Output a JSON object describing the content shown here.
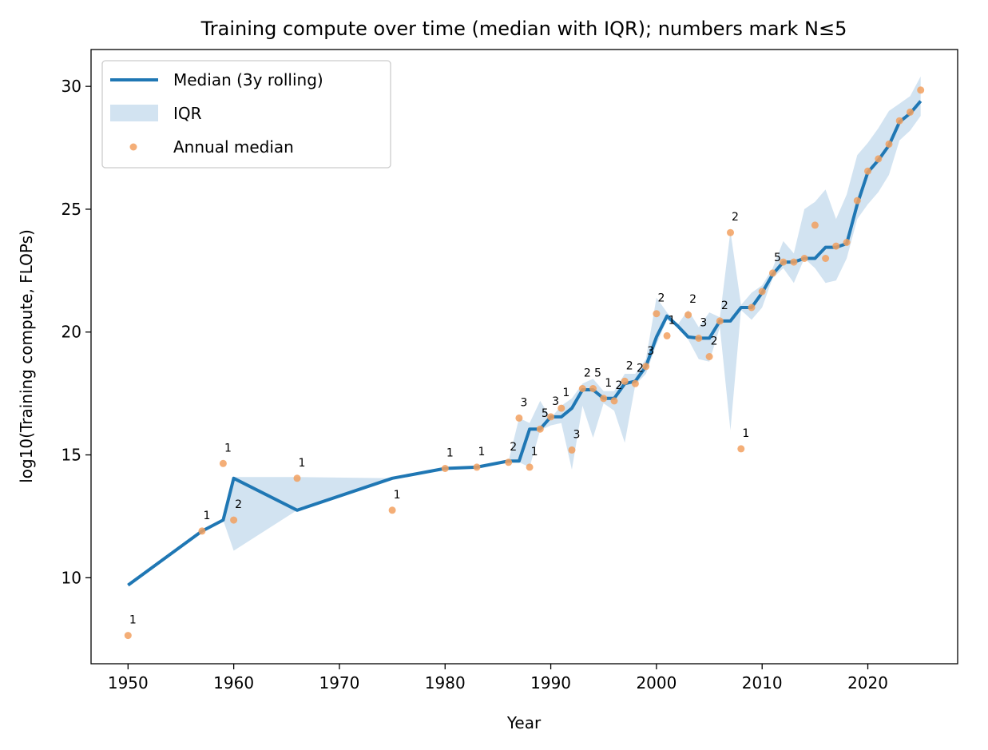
{
  "chart_data": {
    "type": "line",
    "title": "Training compute over time (median with IQR); numbers mark N≤5",
    "xlabel": "Year",
    "ylabel": "log10(Training compute, FLOPs)",
    "xlim": [
      1946.5,
      2028.5
    ],
    "ylim": [
      6.5,
      31.5
    ],
    "xticks": [
      1950,
      1960,
      1970,
      1980,
      1990,
      2000,
      2010,
      2020
    ],
    "yticks": [
      10,
      15,
      20,
      25,
      30
    ],
    "grid": false,
    "legend": {
      "position": "top-left",
      "entries": [
        "Median (3y rolling)",
        "IQR",
        "Annual median"
      ]
    },
    "colors": {
      "median_line": "#1f77b4",
      "iqr_fill": "#a6c8e3",
      "annual_points": "#f2a05f"
    },
    "series": [
      {
        "name": "Median (3y rolling)",
        "type": "line",
        "x": [
          1950,
          1957,
          1959,
          1960,
          1966,
          1975,
          1980,
          1983,
          1986,
          1987,
          1988,
          1989,
          1990,
          1991,
          1992,
          1993,
          1994,
          1995,
          1996,
          1997,
          1998,
          1999,
          2000,
          2001,
          2002,
          2003,
          2004,
          2005,
          2006,
          2007,
          2008,
          2009,
          2010,
          2011,
          2012,
          2013,
          2014,
          2015,
          2016,
          2017,
          2018,
          2019,
          2020,
          2021,
          2022,
          2023,
          2024,
          2025
        ],
        "y": [
          9.7,
          11.9,
          12.35,
          14.05,
          12.75,
          14.05,
          14.45,
          14.5,
          14.75,
          14.75,
          16.05,
          16.05,
          16.55,
          16.55,
          16.9,
          17.65,
          17.65,
          17.3,
          17.3,
          17.9,
          18.0,
          18.6,
          19.8,
          20.65,
          20.25,
          19.8,
          19.75,
          19.75,
          20.45,
          20.45,
          21.0,
          21.0,
          21.6,
          22.35,
          22.85,
          22.85,
          23.0,
          23.0,
          23.45,
          23.45,
          23.6,
          25.2,
          26.5,
          27.0,
          27.6,
          28.55,
          28.9,
          29.4
        ]
      },
      {
        "name": "IQR",
        "type": "band",
        "x": [
          1950,
          1957,
          1959,
          1960,
          1966,
          1975,
          1980,
          1983,
          1986,
          1987,
          1988,
          1989,
          1990,
          1991,
          1992,
          1993,
          1994,
          1995,
          1996,
          1997,
          1998,
          1999,
          2000,
          2001,
          2002,
          2003,
          2004,
          2005,
          2006,
          2007,
          2008,
          2009,
          2010,
          2011,
          2012,
          2013,
          2014,
          2015,
          2016,
          2017,
          2018,
          2019,
          2020,
          2021,
          2022,
          2023,
          2024,
          2025
        ],
        "lower": [
          9.7,
          11.9,
          12.35,
          11.1,
          12.75,
          14.05,
          14.45,
          14.5,
          14.75,
          14.7,
          14.5,
          16.0,
          16.2,
          16.3,
          14.4,
          17.0,
          15.7,
          17.1,
          16.8,
          15.5,
          17.85,
          18.3,
          19.5,
          20.5,
          20.2,
          19.7,
          18.9,
          18.8,
          20.2,
          16.0,
          20.9,
          20.5,
          21.0,
          22.2,
          22.6,
          22.0,
          23.0,
          22.6,
          22.0,
          22.1,
          23.0,
          24.6,
          25.2,
          25.7,
          26.4,
          27.8,
          28.2,
          28.8
        ],
        "upper": [
          9.7,
          11.9,
          12.35,
          14.1,
          14.1,
          14.05,
          14.45,
          14.5,
          14.75,
          16.5,
          16.3,
          17.2,
          16.5,
          17.0,
          17.3,
          17.9,
          18.1,
          17.6,
          17.6,
          18.3,
          18.3,
          18.9,
          21.4,
          20.8,
          20.3,
          20.9,
          20.2,
          20.8,
          20.6,
          24.1,
          21.1,
          21.6,
          21.9,
          22.6,
          23.7,
          23.2,
          25.0,
          25.3,
          25.8,
          24.6,
          25.6,
          27.2,
          27.7,
          28.3,
          29.0,
          29.3,
          29.6,
          30.4
        ]
      },
      {
        "name": "Annual median",
        "type": "scatter",
        "x": [
          1950,
          1957,
          1959,
          1960,
          1966,
          1975,
          1980,
          1983,
          1986,
          1987,
          1988,
          1989,
          1990,
          1991,
          1992,
          1993,
          1994,
          1995,
          1996,
          1997,
          1998,
          1999,
          2000,
          2001,
          2003,
          2004,
          2005,
          2006,
          2007,
          2008,
          2009,
          2010,
          2011,
          2012,
          2013,
          2014,
          2015,
          2016,
          2017,
          2018,
          2019,
          2020,
          2021,
          2022,
          2023,
          2024,
          2025
        ],
        "y": [
          7.65,
          11.9,
          14.65,
          12.35,
          14.05,
          12.75,
          14.45,
          14.5,
          14.7,
          16.5,
          14.5,
          16.05,
          16.55,
          16.9,
          15.2,
          17.7,
          17.7,
          17.3,
          17.2,
          18.0,
          17.9,
          18.6,
          20.75,
          19.85,
          20.7,
          19.75,
          19.0,
          20.45,
          24.05,
          15.25,
          21.0,
          21.65,
          22.4,
          22.85,
          22.85,
          23.0,
          24.35,
          23.0,
          23.5,
          23.65,
          25.35,
          26.55,
          27.05,
          27.65,
          28.6,
          28.95,
          29.85
        ]
      }
    ],
    "count_labels": [
      {
        "x": 1950,
        "y": 7.65,
        "label": "1"
      },
      {
        "x": 1957,
        "y": 11.9,
        "label": "1"
      },
      {
        "x": 1959,
        "y": 14.65,
        "label": "1"
      },
      {
        "x": 1960,
        "y": 12.35,
        "label": "2"
      },
      {
        "x": 1966,
        "y": 14.05,
        "label": "1"
      },
      {
        "x": 1975,
        "y": 12.75,
        "label": "1"
      },
      {
        "x": 1980,
        "y": 14.45,
        "label": "1"
      },
      {
        "x": 1983,
        "y": 14.5,
        "label": "1"
      },
      {
        "x": 1986,
        "y": 14.7,
        "label": "2"
      },
      {
        "x": 1987,
        "y": 16.5,
        "label": "3"
      },
      {
        "x": 1988,
        "y": 14.5,
        "label": "1"
      },
      {
        "x": 1989,
        "y": 16.05,
        "label": "5"
      },
      {
        "x": 1990,
        "y": 16.55,
        "label": "3"
      },
      {
        "x": 1991,
        "y": 16.9,
        "label": "1"
      },
      {
        "x": 1992,
        "y": 15.2,
        "label": "3"
      },
      {
        "x": 1993,
        "y": 17.7,
        "label": "2"
      },
      {
        "x": 1994,
        "y": 17.7,
        "label": "5"
      },
      {
        "x": 1995,
        "y": 17.3,
        "label": "1"
      },
      {
        "x": 1996,
        "y": 17.2,
        "label": "2"
      },
      {
        "x": 1997,
        "y": 18.0,
        "label": "2"
      },
      {
        "x": 1998,
        "y": 17.9,
        "label": "2"
      },
      {
        "x": 1999,
        "y": 18.6,
        "label": "3"
      },
      {
        "x": 2000,
        "y": 20.75,
        "label": "2"
      },
      {
        "x": 2001,
        "y": 19.85,
        "label": "1"
      },
      {
        "x": 2003,
        "y": 20.7,
        "label": "2"
      },
      {
        "x": 2004,
        "y": 19.75,
        "label": "3"
      },
      {
        "x": 2005,
        "y": 19.0,
        "label": "2"
      },
      {
        "x": 2006,
        "y": 20.45,
        "label": "2"
      },
      {
        "x": 2007,
        "y": 24.05,
        "label": "2"
      },
      {
        "x": 2008,
        "y": 15.25,
        "label": "1"
      },
      {
        "x": 2011,
        "y": 22.4,
        "label": "5"
      }
    ]
  }
}
